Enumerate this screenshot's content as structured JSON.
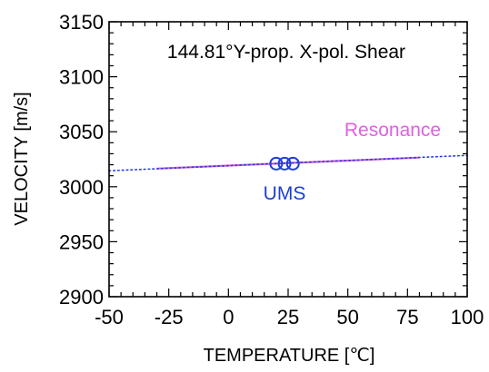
{
  "chart_data": {
    "type": "line",
    "title": "144.81°Y-prop. X-pol. Shear",
    "xlabel": "TEMPERATURE [℃]",
    "ylabel": "VELOCITY [m/s]",
    "xlim": [
      -50,
      100
    ],
    "ylim": [
      2900,
      3150
    ],
    "x_major_ticks": [
      -50,
      -25,
      0,
      25,
      50,
      75,
      100
    ],
    "y_major_ticks": [
      2900,
      2950,
      3000,
      3050,
      3100,
      3150
    ],
    "x_tick_labels": [
      "-50",
      "-25",
      "0",
      "25",
      "50",
      "75",
      "100"
    ],
    "y_tick_labels": [
      "2900",
      "2950",
      "3000",
      "3050",
      "3100",
      "3150"
    ],
    "grid": false,
    "series": [
      {
        "name": "Resonance",
        "style": "solid",
        "color": "#e060e0",
        "x": [
          -30,
          80
        ],
        "y": [
          3016.5,
          3026.5
        ]
      },
      {
        "name": "UMS",
        "style": "points",
        "marker": "open-circle",
        "color": "#1e3fd0",
        "x": [
          20,
          23.5,
          27
        ],
        "y": [
          3021,
          3021,
          3021
        ]
      },
      {
        "style": "dotted",
        "color": "#2a3fd8",
        "x": [
          -50,
          100
        ],
        "y": [
          3014.5,
          3028.5
        ]
      }
    ],
    "annotations": [
      {
        "text": "Resonance",
        "color": "#e060e0"
      },
      {
        "text": "UMS",
        "color": "#1e3fd0"
      }
    ]
  }
}
